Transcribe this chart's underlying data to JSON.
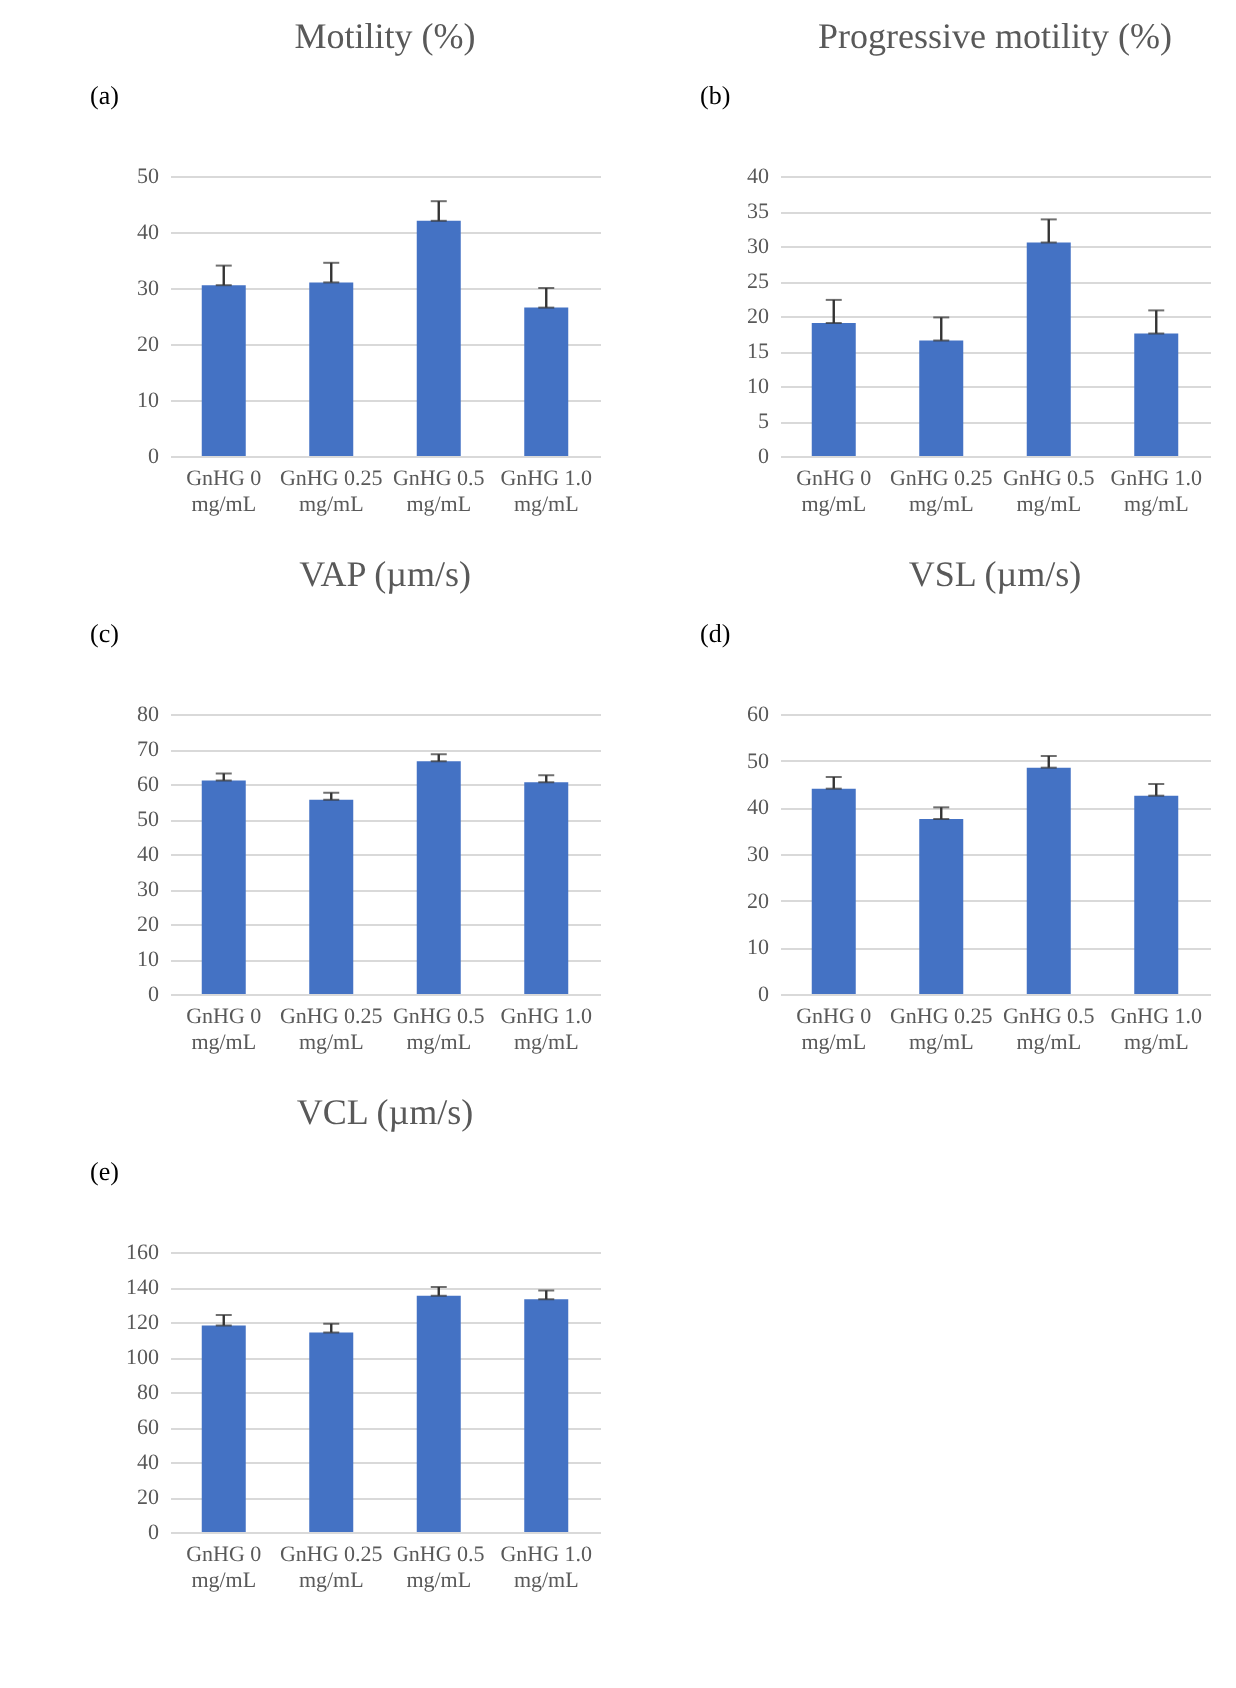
{
  "chart_data": [
    {
      "type": "bar",
      "title": "Motility (%)",
      "annotations": [
        "(a)"
      ],
      "categories": [
        "GnHG 0 mg/mL",
        "GnHG 0.25 mg/mL",
        "GnHG 0.5 mg/mL",
        "GnHG 1.0 mg/mL"
      ],
      "values": [
        30.5,
        31,
        42,
        26.5
      ],
      "errors": [
        [
          30.5,
          34
        ],
        [
          31,
          34.5
        ],
        [
          42,
          45.5
        ],
        [
          26.5,
          30
        ]
      ],
      "color": "#4472c4",
      "ylim": [
        0,
        50
      ],
      "yticks": [
        0,
        10,
        20,
        30,
        40,
        50
      ],
      "grid": "y"
    },
    {
      "type": "bar",
      "title": "Progressive motility (%)",
      "annotations": [
        "(b)"
      ],
      "categories": [
        "GnHG 0 mg/mL",
        "GnHG 0.25 mg/mL",
        "GnHG 0.5 mg/mL",
        "GnHG 1.0 mg/mL"
      ],
      "values": [
        19,
        16.5,
        30.5,
        17.5
      ],
      "errors": [
        [
          19,
          22.3
        ],
        [
          16.5,
          19.8
        ],
        [
          30.5,
          33.8
        ],
        [
          17.5,
          20.8
        ]
      ],
      "color": "#4472c4",
      "ylim": [
        0,
        40
      ],
      "yticks": [
        0,
        5,
        10,
        15,
        20,
        25,
        30,
        35,
        40
      ],
      "grid": "y"
    },
    {
      "type": "bar",
      "title": "VAP (µm/s)",
      "annotations": [
        "(c)"
      ],
      "categories": [
        "GnHG 0 mg/mL",
        "GnHG 0.25 mg/mL",
        "GnHG 0.5 mg/mL",
        "GnHG 1.0 mg/mL"
      ],
      "values": [
        61,
        55.5,
        66.5,
        60.5
      ],
      "errors": [
        [
          61,
          63
        ],
        [
          55.5,
          57.5
        ],
        [
          66.5,
          68.5
        ],
        [
          60.5,
          62.5
        ]
      ],
      "color": "#4472c4",
      "ylim": [
        0,
        80
      ],
      "yticks": [
        0,
        10,
        20,
        30,
        40,
        50,
        60,
        70,
        80
      ],
      "grid": "y"
    },
    {
      "type": "bar",
      "title": "VSL (µm/s)",
      "annotations": [
        "(d)"
      ],
      "categories": [
        "GnHG 0 mg/mL",
        "GnHG 0.25 mg/mL",
        "GnHG 0.5 mg/mL",
        "GnHG 1.0 mg/mL"
      ],
      "values": [
        44,
        37.5,
        48.5,
        42.5
      ],
      "errors": [
        [
          44,
          46.5
        ],
        [
          37.5,
          40
        ],
        [
          48.5,
          51
        ],
        [
          42.5,
          45
        ]
      ],
      "color": "#4472c4",
      "ylim": [
        0,
        60
      ],
      "yticks": [
        0,
        10,
        20,
        30,
        40,
        50,
        60
      ],
      "grid": "y"
    },
    {
      "type": "bar",
      "title": "VCL (µm/s)",
      "annotations": [
        "(e)"
      ],
      "categories": [
        "GnHG 0 mg/mL",
        "GnHG 0.25 mg/mL",
        "GnHG 0.5 mg/mL",
        "GnHG 1.0 mg/mL"
      ],
      "values": [
        118,
        114,
        135,
        133
      ],
      "errors": [
        [
          118,
          124
        ],
        [
          114,
          119
        ],
        [
          135,
          140
        ],
        [
          133,
          138
        ]
      ],
      "color": "#4472c4",
      "ylim": [
        0,
        160
      ],
      "yticks": [
        0,
        20,
        40,
        60,
        80,
        100,
        120,
        140,
        160
      ],
      "grid": "y"
    }
  ]
}
